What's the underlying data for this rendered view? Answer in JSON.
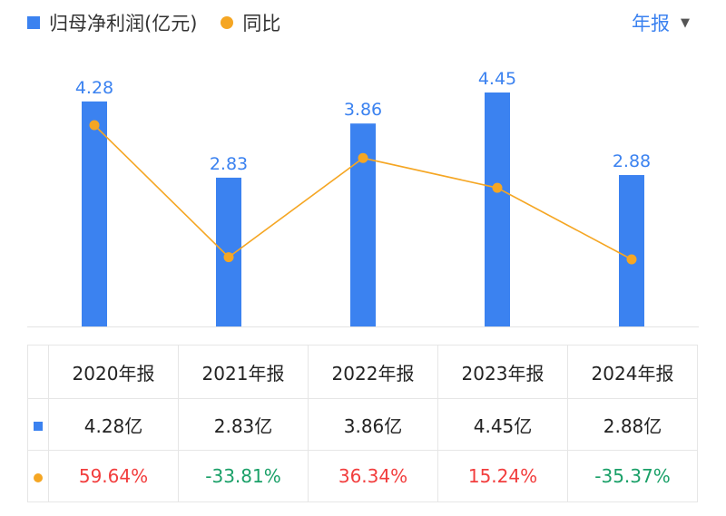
{
  "legend": {
    "bar_label": "归母净利润(亿元)",
    "line_label": "同比",
    "bar_color": "#3b82f0",
    "line_color": "#f5a623"
  },
  "period_selector": {
    "label": "年报",
    "caret": "▼"
  },
  "chart_data": {
    "type": "bar",
    "categories": [
      "2020年报",
      "2021年报",
      "2022年报",
      "2023年报",
      "2024年报"
    ],
    "series": [
      {
        "name": "归母净利润(亿元)",
        "type": "bar",
        "values": [
          4.28,
          2.83,
          3.86,
          4.45,
          2.88
        ],
        "labels": [
          "4.28",
          "2.83",
          "3.86",
          "4.45",
          "2.88"
        ]
      },
      {
        "name": "同比",
        "type": "line",
        "values": [
          59.64,
          -33.81,
          36.34,
          15.24,
          -35.37
        ]
      }
    ]
  },
  "table": {
    "headers": [
      "2020年报",
      "2021年报",
      "2022年报",
      "2023年报",
      "2024年报"
    ],
    "profit_row": [
      "4.28亿",
      "2.83亿",
      "3.86亿",
      "4.45亿",
      "2.88亿"
    ],
    "yoy_row": [
      "59.64%",
      "-33.81%",
      "36.34%",
      "15.24%",
      "-35.37%"
    ],
    "positive_color": "#f23d3d",
    "negative_color": "#1aa068"
  }
}
